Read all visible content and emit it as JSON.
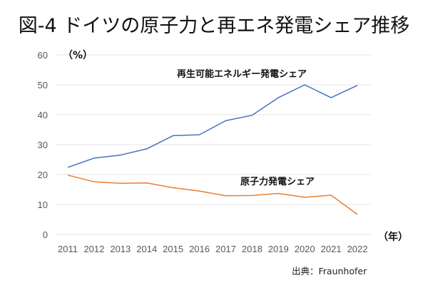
{
  "chart_data": {
    "type": "line",
    "title": "図-4 ドイツの原子力と再エネ発電シェア推移",
    "xlabel": "（年）",
    "ylabel": "（%）",
    "ylim": [
      0,
      60
    ],
    "yticks": [
      "0",
      "10",
      "20",
      "30",
      "40",
      "50",
      "60"
    ],
    "grid": true,
    "categories": [
      "2011",
      "2012",
      "2013",
      "2014",
      "2015",
      "2016",
      "2017",
      "2018",
      "2019",
      "2020",
      "2021",
      "2022"
    ],
    "series": [
      {
        "name": "再生可能エネルギー発電シェア",
        "color": "#4472c4",
        "values": [
          22.4,
          25.5,
          26.5,
          28.6,
          33.0,
          33.3,
          38.0,
          39.8,
          45.7,
          50.0,
          45.7,
          49.8
        ]
      },
      {
        "name": "原子力発電シェア",
        "color": "#ed7d31",
        "values": [
          19.8,
          17.6,
          17.1,
          17.2,
          15.6,
          14.5,
          12.9,
          13.0,
          13.7,
          12.4,
          13.1,
          6.7
        ]
      }
    ],
    "source": "出典：Fraunhofer"
  }
}
